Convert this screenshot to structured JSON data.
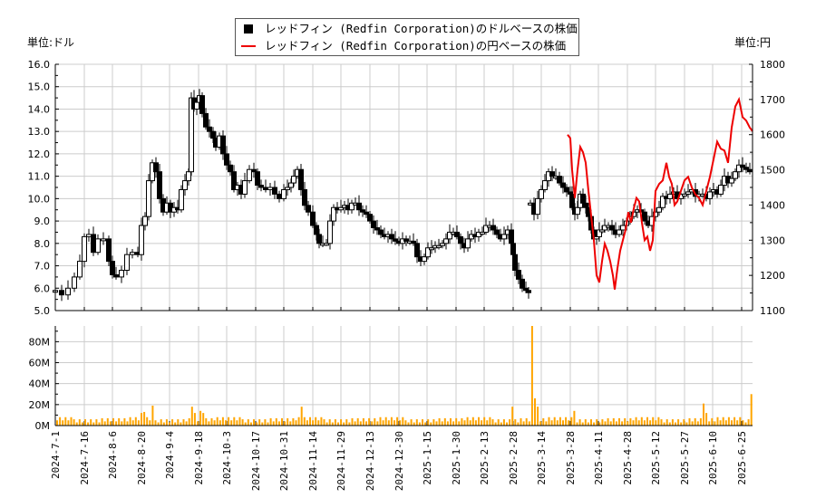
{
  "legend": {
    "usd_label": "レッドフィン (Redfin Corporation)のドルベースの株価",
    "jpy_label": "レッドフィン (Redfin Corporation)の円ベースの株価"
  },
  "units": {
    "left": "単位:ドル",
    "right": "単位:円"
  },
  "colors": {
    "candle": "#000000",
    "jpy_line": "#ee0000",
    "volume": "#ffa500",
    "grid": "#cccccc"
  },
  "chart_data": [
    {
      "type": "candlestick",
      "title": "レッドフィン (Redfin Corporation)のドルベースの株価",
      "ylabel": "単位:ドル",
      "ylim": [
        5.0,
        16.0
      ],
      "yticks": [
        "5.0",
        "6.0",
        "7.0",
        "8.0",
        "9.0",
        "10.0",
        "11.0",
        "12.0",
        "13.0",
        "14.0",
        "15.0",
        "16.0"
      ],
      "x": [
        "2024-7-1",
        "2024-7-16",
        "2024-8-6",
        "2024-8-20",
        "2024-9-4",
        "2024-9-18",
        "2024-10-3",
        "2024-10-17",
        "2024-10-31",
        "2024-11-14",
        "2024-11-29",
        "2024-12-13",
        "2024-12-30",
        "2025-1-15",
        "2025-1-30",
        "2025-2-13",
        "2025-2-28",
        "2025-3-14",
        "2025-3-28",
        "2025-4-11",
        "2025-4-28",
        "2025-5-12",
        "2025-5-27",
        "2025-6-10",
        "2025-6-25"
      ],
      "approx_close": [
        5.8,
        8.3,
        6.8,
        9.0,
        9.6,
        14.0,
        11.0,
        10.3,
        10.4,
        8.0,
        9.6,
        8.5,
        7.8,
        7.8,
        8.4,
        8.4,
        6.0,
        10.4,
        9.5,
        8.5,
        9.4,
        10.2,
        10.2,
        10.8,
        11.3
      ],
      "grid": true
    },
    {
      "type": "line",
      "title": "レッドフィン (Redfin Corporation)の円ベースの株価",
      "ylabel": "単位:円",
      "ylim": [
        1100,
        1800
      ],
      "yticks": [
        "1100",
        "1200",
        "1300",
        "1400",
        "1500",
        "1600",
        "1700",
        "1800"
      ],
      "x_start": "2025-3-24",
      "approx_values": [
        1600,
        1530,
        1400,
        1540,
        1420,
        1180,
        1280,
        1160,
        1250,
        1330,
        1390,
        1300,
        1260,
        1320,
        1440,
        1520,
        1450,
        1470,
        1400,
        1470,
        1440,
        1450,
        1480,
        1580,
        1560,
        1500,
        1650,
        1700,
        1640,
        1610
      ],
      "color": "#ee0000"
    },
    {
      "type": "bar",
      "title": "出来高",
      "ylim": [
        0,
        95
      ],
      "yticks": [
        "0M",
        "20M",
        "40M",
        "60M",
        "80M"
      ],
      "peak": {
        "date": "2025-3-7",
        "value_M": 95
      },
      "color": "#ffa500",
      "grid": true
    }
  ]
}
